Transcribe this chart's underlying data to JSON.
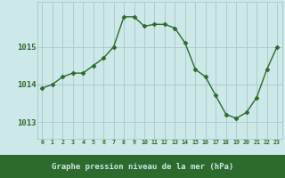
{
  "hours": [
    0,
    1,
    2,
    3,
    4,
    5,
    6,
    7,
    8,
    9,
    10,
    11,
    12,
    13,
    14,
    15,
    16,
    17,
    18,
    19,
    20,
    21,
    22,
    23
  ],
  "pressure": [
    1013.9,
    1014.0,
    1014.2,
    1014.3,
    1014.3,
    1014.5,
    1014.7,
    1015.0,
    1015.8,
    1015.8,
    1015.55,
    1015.6,
    1015.6,
    1015.5,
    1015.1,
    1014.4,
    1014.2,
    1013.7,
    1013.2,
    1013.1,
    1013.25,
    1013.65,
    1014.4,
    1015.0
  ],
  "line_color": "#2d6a2d",
  "marker": "D",
  "markersize": 2.5,
  "bg_color": "#cce8e8",
  "label_bg_color": "#2d6a2d",
  "grid_color": "#aac8c8",
  "tick_label_color": "#2d6a2d",
  "xlabel": "Graphe pression niveau de la mer (hPa)",
  "xlabel_color": "#cce8e8",
  "yticks": [
    1013,
    1014,
    1015
  ],
  "ylim": [
    1012.55,
    1016.2
  ],
  "xlim": [
    -0.5,
    23.5
  ],
  "linewidth": 1.0
}
